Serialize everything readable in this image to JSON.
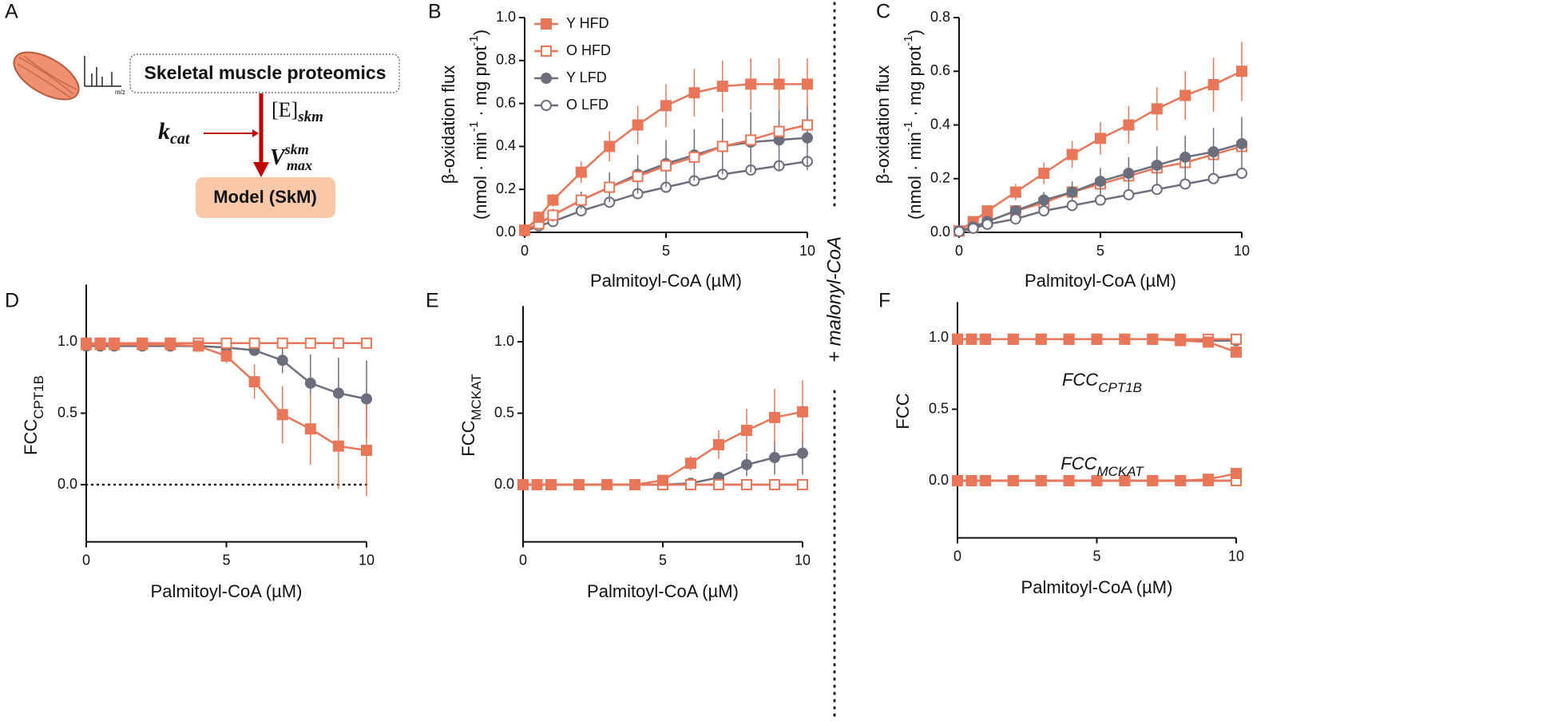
{
  "diagram": {
    "panel": "A",
    "spectrum_axis": "m/z",
    "source": "Skeletal muscle proteomics",
    "enzyme": {
      "base": "[E]",
      "sub": "skm"
    },
    "kcat": {
      "base": "k",
      "sub": "cat"
    },
    "vmax": {
      "base": "V",
      "sup": "skm",
      "sub": "max"
    },
    "model": "Model (SkM)"
  },
  "annotation": "+ malonyl-CoA",
  "chart_data": [
    {
      "type": "line",
      "panel": "B",
      "x": [
        0,
        0.5,
        1,
        2,
        3,
        4,
        5,
        6,
        7,
        8,
        9,
        10
      ],
      "xlabel": "Palmitoyl-CoA (µM)",
      "ylabel": [
        [
          "β-oxidation flux"
        ],
        [
          "(nmol · min",
          {
            "sup": "-1"
          },
          " · mg prot",
          {
            "sup": "-1"
          },
          ")"
        ]
      ],
      "xlim": [
        0,
        10
      ],
      "xticks": [
        0,
        5,
        10
      ],
      "ylim": [
        0,
        1
      ],
      "yticks": [
        {
          "value": 0,
          "label": "0.0"
        },
        0.2,
        0.4,
        0.6,
        0.8,
        {
          "value": 1,
          "label": "1.0"
        }
      ],
      "legend": "top-left",
      "series": [
        {
          "name": "Y HFD",
          "color": "#e8775a",
          "marker": "square",
          "values": [
            0.01,
            0.07,
            0.15,
            0.28,
            0.4,
            0.5,
            0.59,
            0.65,
            0.68,
            0.69,
            0.69,
            0.69
          ],
          "errors": [
            0.01,
            0.02,
            0.03,
            0.05,
            0.07,
            0.09,
            0.1,
            0.11,
            0.12,
            0.12,
            0.12,
            0.12
          ]
        },
        {
          "name": "O HFD",
          "color": "#e8775a",
          "marker": "square-open",
          "values": [
            0.01,
            0.04,
            0.08,
            0.15,
            0.21,
            0.26,
            0.31,
            0.35,
            0.4,
            0.43,
            0.47,
            0.5
          ]
        },
        {
          "name": "Y LFD",
          "color": "#6b6e7c",
          "marker": "circle",
          "values": [
            0.01,
            0.04,
            0.08,
            0.15,
            0.21,
            0.27,
            0.32,
            0.36,
            0.4,
            0.42,
            0.43,
            0.44
          ],
          "errors": [
            0.01,
            0.02,
            0.03,
            0.04,
            0.07,
            0.09,
            0.11,
            0.12,
            0.13,
            0.14,
            0.14,
            0.15
          ]
        },
        {
          "name": "O LFD",
          "color": "#6b6e7c",
          "marker": "circle-open",
          "values": [
            0.005,
            0.03,
            0.05,
            0.1,
            0.14,
            0.18,
            0.21,
            0.24,
            0.27,
            0.29,
            0.31,
            0.33
          ]
        }
      ]
    },
    {
      "type": "line",
      "panel": "C",
      "x": [
        0,
        0.5,
        1,
        2,
        3,
        4,
        5,
        6,
        7,
        8,
        9,
        10
      ],
      "xlabel": "Palmitoyl-CoA (µM)",
      "ylabel": [
        [
          "β-oxidation flux"
        ],
        [
          "(nmol · min",
          {
            "sup": "-1"
          },
          " · mg prot",
          {
            "sup": "-1"
          },
          ")"
        ]
      ],
      "xlim": [
        0,
        10
      ],
      "xticks": [
        0,
        5,
        10
      ],
      "ylim": [
        0,
        0.8
      ],
      "yticks": [
        {
          "value": 0,
          "label": "0.0"
        },
        0.2,
        0.4,
        0.6,
        0.8
      ],
      "series": [
        {
          "color": "#e8775a",
          "marker": "square",
          "values": [
            0.005,
            0.04,
            0.08,
            0.15,
            0.22,
            0.29,
            0.35,
            0.4,
            0.46,
            0.51,
            0.55,
            0.6
          ],
          "errors": [
            0.005,
            0.01,
            0.02,
            0.03,
            0.04,
            0.05,
            0.06,
            0.07,
            0.08,
            0.09,
            0.1,
            0.11
          ]
        },
        {
          "color": "#e8775a",
          "marker": "square-open",
          "values": [
            0.005,
            0.02,
            0.04,
            0.08,
            0.11,
            0.15,
            0.18,
            0.21,
            0.24,
            0.26,
            0.29,
            0.32
          ]
        },
        {
          "color": "#6b6e7c",
          "marker": "circle",
          "values": [
            0.005,
            0.02,
            0.04,
            0.08,
            0.12,
            0.15,
            0.19,
            0.22,
            0.25,
            0.28,
            0.3,
            0.33
          ],
          "errors": [
            0.003,
            0.01,
            0.01,
            0.02,
            0.03,
            0.04,
            0.05,
            0.06,
            0.07,
            0.08,
            0.09,
            0.1
          ]
        },
        {
          "color": "#6b6e7c",
          "marker": "circle-open",
          "values": [
            0.003,
            0.015,
            0.03,
            0.05,
            0.08,
            0.1,
            0.12,
            0.14,
            0.16,
            0.18,
            0.2,
            0.22
          ]
        }
      ]
    },
    {
      "type": "line",
      "panel": "D",
      "x": [
        0,
        0.5,
        1,
        2,
        3,
        4,
        5,
        6,
        7,
        8,
        9,
        10
      ],
      "xlabel": "Palmitoyl-CoA (µM)",
      "ylabel": [
        [
          "FCC",
          {
            "sub": "CPT1B"
          }
        ]
      ],
      "xlim": [
        0,
        10
      ],
      "xticks": [
        0,
        5,
        10
      ],
      "ylim": [
        -0.4,
        1.4
      ],
      "yticks": [
        {
          "value": 0,
          "label": "0.0"
        },
        0.5,
        {
          "value": 1,
          "label": "1.0"
        }
      ],
      "zero_line": true,
      "series": [
        {
          "color": "#6b6e7c",
          "marker": "circle-open",
          "values": [
            0.99,
            0.99,
            0.99,
            0.99,
            0.99,
            0.99,
            0.99,
            0.99,
            0.99,
            0.99,
            0.99,
            0.99
          ]
        },
        {
          "color": "#6b6e7c",
          "marker": "circle",
          "values": [
            0.97,
            0.97,
            0.97,
            0.97,
            0.97,
            0.97,
            0.96,
            0.94,
            0.87,
            0.71,
            0.64,
            0.6
          ],
          "errors": [
            0,
            0,
            0,
            0,
            0,
            0,
            0.01,
            0.03,
            0.09,
            0.2,
            0.25,
            0.27
          ]
        },
        {
          "color": "#e8775a",
          "marker": "square-open",
          "values": [
            0.99,
            0.99,
            0.99,
            0.99,
            0.99,
            0.99,
            0.99,
            0.99,
            0.99,
            0.99,
            0.99,
            0.99
          ]
        },
        {
          "color": "#e8775a",
          "marker": "square",
          "values": [
            0.98,
            0.98,
            0.98,
            0.98,
            0.98,
            0.97,
            0.9,
            0.72,
            0.49,
            0.39,
            0.27,
            0.24
          ],
          "errors": [
            0,
            0,
            0,
            0,
            0,
            0.01,
            0.05,
            0.12,
            0.2,
            0.25,
            0.3,
            0.32
          ]
        }
      ]
    },
    {
      "type": "line",
      "panel": "E",
      "x": [
        0,
        0.5,
        1,
        2,
        3,
        4,
        5,
        6,
        7,
        8,
        9,
        10
      ],
      "xlabel": "Palmitoyl-CoA (µM)",
      "ylabel": [
        [
          "FCC",
          {
            "sub": "MCKAT"
          }
        ]
      ],
      "xlim": [
        0,
        10
      ],
      "xticks": [
        0,
        5,
        10
      ],
      "ylim": [
        -0.4,
        1.25
      ],
      "yticks": [
        {
          "value": 0,
          "label": "0.0"
        },
        0.5,
        {
          "value": 1,
          "label": "1.0"
        }
      ],
      "series": [
        {
          "color": "#6b6e7c",
          "marker": "circle-open",
          "values": [
            0,
            0,
            0,
            0,
            0,
            0,
            0,
            0,
            0,
            0,
            0,
            0
          ]
        },
        {
          "color": "#6b6e7c",
          "marker": "circle",
          "values": [
            0,
            0,
            0,
            0,
            0,
            0,
            0,
            0.01,
            0.05,
            0.14,
            0.19,
            0.22
          ],
          "errors": [
            0,
            0,
            0,
            0,
            0,
            0,
            0,
            0.01,
            0.02,
            0.08,
            0.12,
            0.15
          ]
        },
        {
          "color": "#e8775a",
          "marker": "square-open",
          "values": [
            0,
            0,
            0,
            0,
            0,
            0,
            0,
            0,
            0,
            0,
            0,
            0
          ]
        },
        {
          "color": "#e8775a",
          "marker": "square",
          "values": [
            0,
            0,
            0,
            0,
            0,
            0,
            0.03,
            0.15,
            0.28,
            0.38,
            0.47,
            0.51
          ],
          "errors": [
            0,
            0,
            0,
            0,
            0,
            0,
            0.01,
            0.05,
            0.1,
            0.15,
            0.2,
            0.22
          ]
        }
      ]
    },
    {
      "type": "line",
      "panel": "F",
      "x": [
        0,
        0.5,
        1,
        2,
        3,
        4,
        5,
        6,
        7,
        8,
        9,
        10
      ],
      "xlabel": "Palmitoyl-CoA (µM)",
      "ylabel": [
        [
          "FCC"
        ]
      ],
      "xlim": [
        0,
        10
      ],
      "xticks": [
        0,
        5,
        10
      ],
      "ylim": [
        -0.4,
        1.25
      ],
      "yticks": [
        {
          "value": 0,
          "label": "0.0"
        },
        0.5,
        {
          "value": 1,
          "label": "1.0"
        }
      ],
      "annotations": [
        {
          "text": "FCC",
          "sub": "CPT1B"
        },
        {
          "text": "FCC",
          "sub": "MCKAT"
        }
      ],
      "series": [
        {
          "color": "#6b6e7c",
          "marker": "circle-open",
          "values": [
            0.99,
            0.99,
            0.99,
            0.99,
            0.99,
            0.99,
            0.99,
            0.99,
            0.99,
            0.99,
            0.99,
            0.99
          ]
        },
        {
          "color": "#6b6e7c",
          "marker": "circle",
          "values": [
            0.99,
            0.99,
            0.99,
            0.99,
            0.99,
            0.99,
            0.99,
            0.99,
            0.99,
            0.99,
            0.98,
            0.98
          ]
        },
        {
          "color": "#e8775a",
          "marker": "square-open",
          "values": [
            0.99,
            0.99,
            0.99,
            0.99,
            0.99,
            0.99,
            0.99,
            0.99,
            0.99,
            0.99,
            0.99,
            0.99
          ]
        },
        {
          "color": "#e8775a",
          "marker": "square",
          "values": [
            0.99,
            0.99,
            0.99,
            0.99,
            0.99,
            0.99,
            0.99,
            0.99,
            0.99,
            0.98,
            0.97,
            0.9
          ],
          "errors": [
            0,
            0,
            0,
            0,
            0,
            0,
            0,
            0,
            0,
            0.01,
            0.01,
            0.03
          ]
        },
        {
          "color": "#6b6e7c",
          "marker": "circle-open",
          "values": [
            0,
            0,
            0,
            0,
            0,
            0,
            0,
            0,
            0,
            0,
            0,
            0
          ]
        },
        {
          "color": "#6b6e7c",
          "marker": "circle",
          "values": [
            0,
            0,
            0,
            0,
            0,
            0,
            0,
            0,
            0,
            0,
            0,
            0
          ]
        },
        {
          "color": "#e8775a",
          "marker": "square-open",
          "values": [
            0,
            0,
            0,
            0,
            0,
            0,
            0,
            0,
            0,
            0,
            0,
            0
          ]
        },
        {
          "color": "#e8775a",
          "marker": "square",
          "values": [
            0,
            0,
            0,
            0,
            0,
            0,
            0,
            0,
            0,
            0,
            0.01,
            0.05
          ],
          "errors": [
            0,
            0,
            0,
            0,
            0,
            0,
            0,
            0,
            0,
            0,
            0.01,
            0.02
          ]
        }
      ]
    }
  ]
}
